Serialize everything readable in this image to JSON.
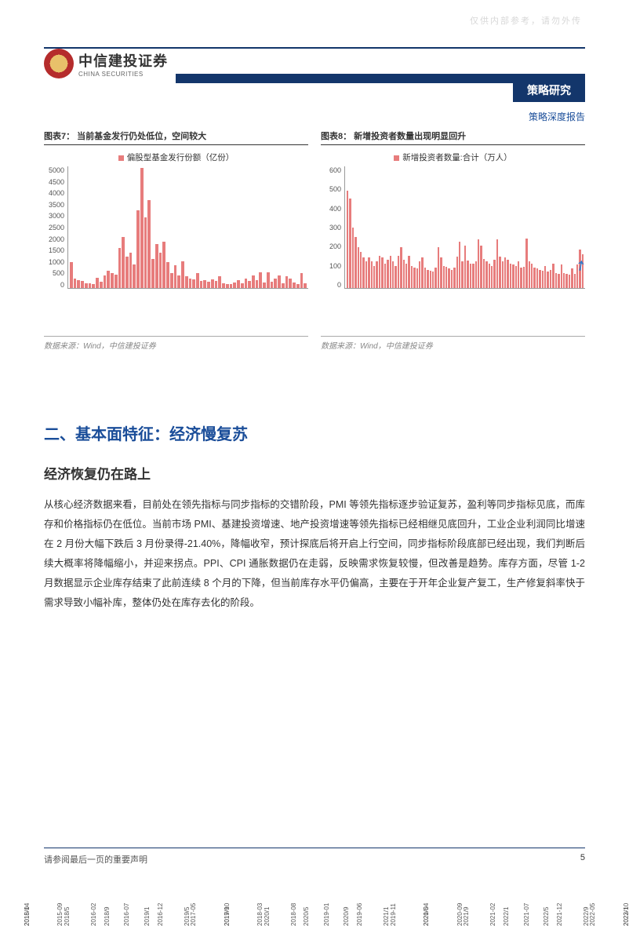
{
  "watermark": "仅供内部参考，请勿外传",
  "header": {
    "logo_cn": "中信建投证券",
    "logo_en": "CHINA SECURITIES",
    "category": "策略研究",
    "subcategory": "策略深度报告"
  },
  "chart7": {
    "type": "bar",
    "title": "图表7：  当前基金发行仍处低位，空间较大",
    "legend": "偏股型基金发行份额（亿份）",
    "source": "数据来源：Wind，中信建投证券",
    "bar_color": "#e77c7c",
    "ylim": [
      0,
      5000
    ],
    "ytick_step": 500,
    "yticks": [
      "0",
      "500",
      "1000",
      "1500",
      "2000",
      "2500",
      "3000",
      "3500",
      "4000",
      "4500",
      "5000"
    ],
    "x_labels": [
      "2018/1",
      "2018/5",
      "2018/9",
      "2019/1",
      "2019/5",
      "2019/9",
      "2020/1",
      "2020/5",
      "2020/9",
      "2021/1",
      "2021/5",
      "2021/9",
      "2022/1",
      "2022/5",
      "2022/9",
      "2023/1"
    ],
    "values": [
      1050,
      380,
      320,
      280,
      210,
      180,
      160,
      420,
      260,
      520,
      700,
      610,
      540,
      1650,
      2100,
      1300,
      1450,
      980,
      3200,
      4950,
      2900,
      3600,
      1200,
      1800,
      1450,
      1900,
      1050,
      620,
      950,
      520,
      1100,
      480,
      390,
      340,
      610,
      280,
      320,
      250,
      350,
      290,
      480,
      180,
      160,
      150,
      220,
      330,
      200,
      380,
      290,
      520,
      310,
      650,
      220,
      630,
      250,
      380,
      530,
      180,
      480,
      390,
      240,
      170,
      600,
      180
    ]
  },
  "chart8": {
    "type": "bar",
    "title": "图表8：  新增投资者数量出现明显回升",
    "legend": "新增投资者数量:合计（万人）",
    "source": "数据来源：Wind，中信建投证券",
    "bar_color": "#e77c7c",
    "arrow_color": "#3a7cc9",
    "ylim": [
      0,
      600
    ],
    "ytick_step": 100,
    "yticks": [
      "0",
      "100",
      "200",
      "300",
      "400",
      "500",
      "600"
    ],
    "x_labels": [
      "2015-04",
      "2015-09",
      "2016-02",
      "2016-07",
      "2016-12",
      "2017-05",
      "2017-10",
      "2018-03",
      "2018-08",
      "2019-01",
      "2019-06",
      "2019-11",
      "2020-04",
      "2020-09",
      "2021-02",
      "2021-07",
      "2021-12",
      "2022-05",
      "2022-10"
    ],
    "values": [
      480,
      440,
      300,
      250,
      200,
      180,
      150,
      130,
      150,
      130,
      110,
      130,
      160,
      150,
      120,
      140,
      160,
      130,
      110,
      160,
      200,
      140,
      120,
      160,
      110,
      100,
      95,
      130,
      150,
      100,
      90,
      85,
      80,
      100,
      200,
      150,
      110,
      105,
      95,
      90,
      100,
      155,
      230,
      130,
      210,
      135,
      120,
      120,
      130,
      240,
      210,
      145,
      130,
      120,
      110,
      140,
      240,
      155,
      130,
      150,
      140,
      120,
      115,
      110,
      130,
      100,
      105,
      245,
      130,
      120,
      100,
      95,
      90,
      85,
      110,
      80,
      90,
      120,
      75,
      70,
      115,
      75,
      70,
      65,
      95,
      70,
      115,
      190,
      165
    ]
  },
  "section": {
    "title": "二、基本面特征：经济慢复苏",
    "subtitle": "经济恢复仍在路上",
    "body": "从核心经济数据来看，目前处在领先指标与同步指标的交错阶段，PMI 等领先指标逐步验证复苏，盈利等同步指标见底，而库存和价格指标仍在低位。当前市场 PMI、基建投资增速、地产投资增速等领先指标已经相继见底回升，工业企业利润同比增速在 2 月份大幅下跌后 3 月份录得-21.40%，降幅收窄，预计探底后将开启上行空间，同步指标阶段底部已经出现，我们判断后续大概率将降幅缩小，并迎来拐点。PPI、CPI 通胀数据仍在走弱，反映需求恢复较慢，但改善是趋势。库存方面，尽管 1-2 月数据显示企业库存结束了此前连续 8 个月的下降，但当前库存水平仍偏高，主要在于开年企业复产复工，生产修复斜率快于需求导致小幅补库，整体仍处在库存去化的阶段。"
  },
  "footer": {
    "disclaimer": "请参阅最后一页的重要声明",
    "page": "5"
  }
}
